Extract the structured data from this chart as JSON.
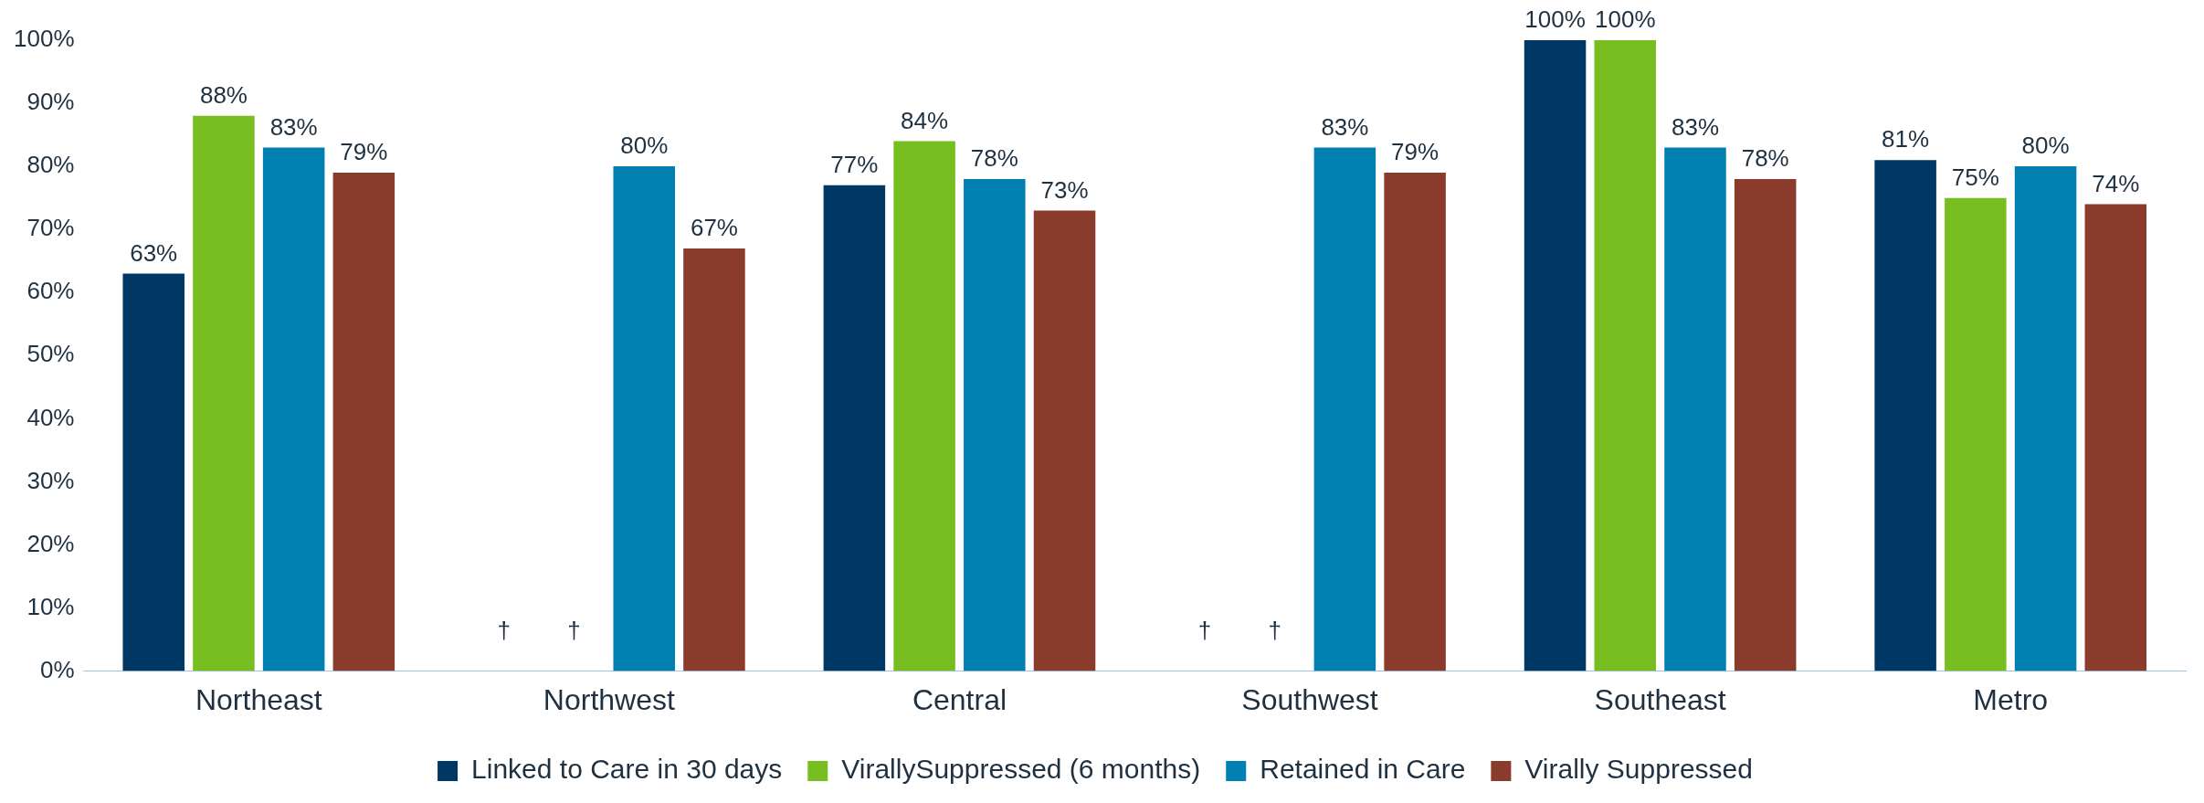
{
  "chart_data": {
    "type": "bar",
    "categories": [
      "Northeast",
      "Northwest",
      "Central",
      "Southwest",
      "Southeast",
      "Metro"
    ],
    "series": [
      {
        "name": "Linked to Care in 30 days",
        "color": "#003865",
        "values": [
          63,
          null,
          77,
          null,
          100,
          81
        ],
        "value_labels": [
          "63%",
          "†",
          "77%",
          "†",
          "100%",
          "81%"
        ]
      },
      {
        "name": "VirallySuppressed (6 months)",
        "color": "#78be20",
        "values": [
          88,
          null,
          84,
          null,
          100,
          75
        ],
        "value_labels": [
          "88%",
          "†",
          "84%",
          "†",
          "100%",
          "75%"
        ]
      },
      {
        "name": "Retained in Care",
        "color": "#0080b0",
        "values": [
          83,
          80,
          78,
          83,
          83,
          80
        ],
        "value_labels": [
          "83%",
          "80%",
          "78%",
          "83%",
          "83%",
          "80%"
        ]
      },
      {
        "name": "Virally Suppressed",
        "color": "#8a3b2c",
        "values": [
          79,
          67,
          73,
          79,
          78,
          74
        ],
        "value_labels": [
          "79%",
          "67%",
          "73%",
          "79%",
          "78%",
          "74%"
        ]
      }
    ],
    "ylim": [
      0,
      100
    ],
    "yticks": [
      {
        "value": 0,
        "label": "0%"
      },
      {
        "value": 10,
        "label": "10%"
      },
      {
        "value": 20,
        "label": "20%"
      },
      {
        "value": 30,
        "label": "30%"
      },
      {
        "value": 40,
        "label": "40%"
      },
      {
        "value": 50,
        "label": "50%"
      },
      {
        "value": 60,
        "label": "60%"
      },
      {
        "value": 70,
        "label": "70%"
      },
      {
        "value": 80,
        "label": "80%"
      },
      {
        "value": 90,
        "label": "90%"
      },
      {
        "value": 100,
        "label": "100%"
      }
    ],
    "grid": false,
    "legend": "bottom"
  }
}
